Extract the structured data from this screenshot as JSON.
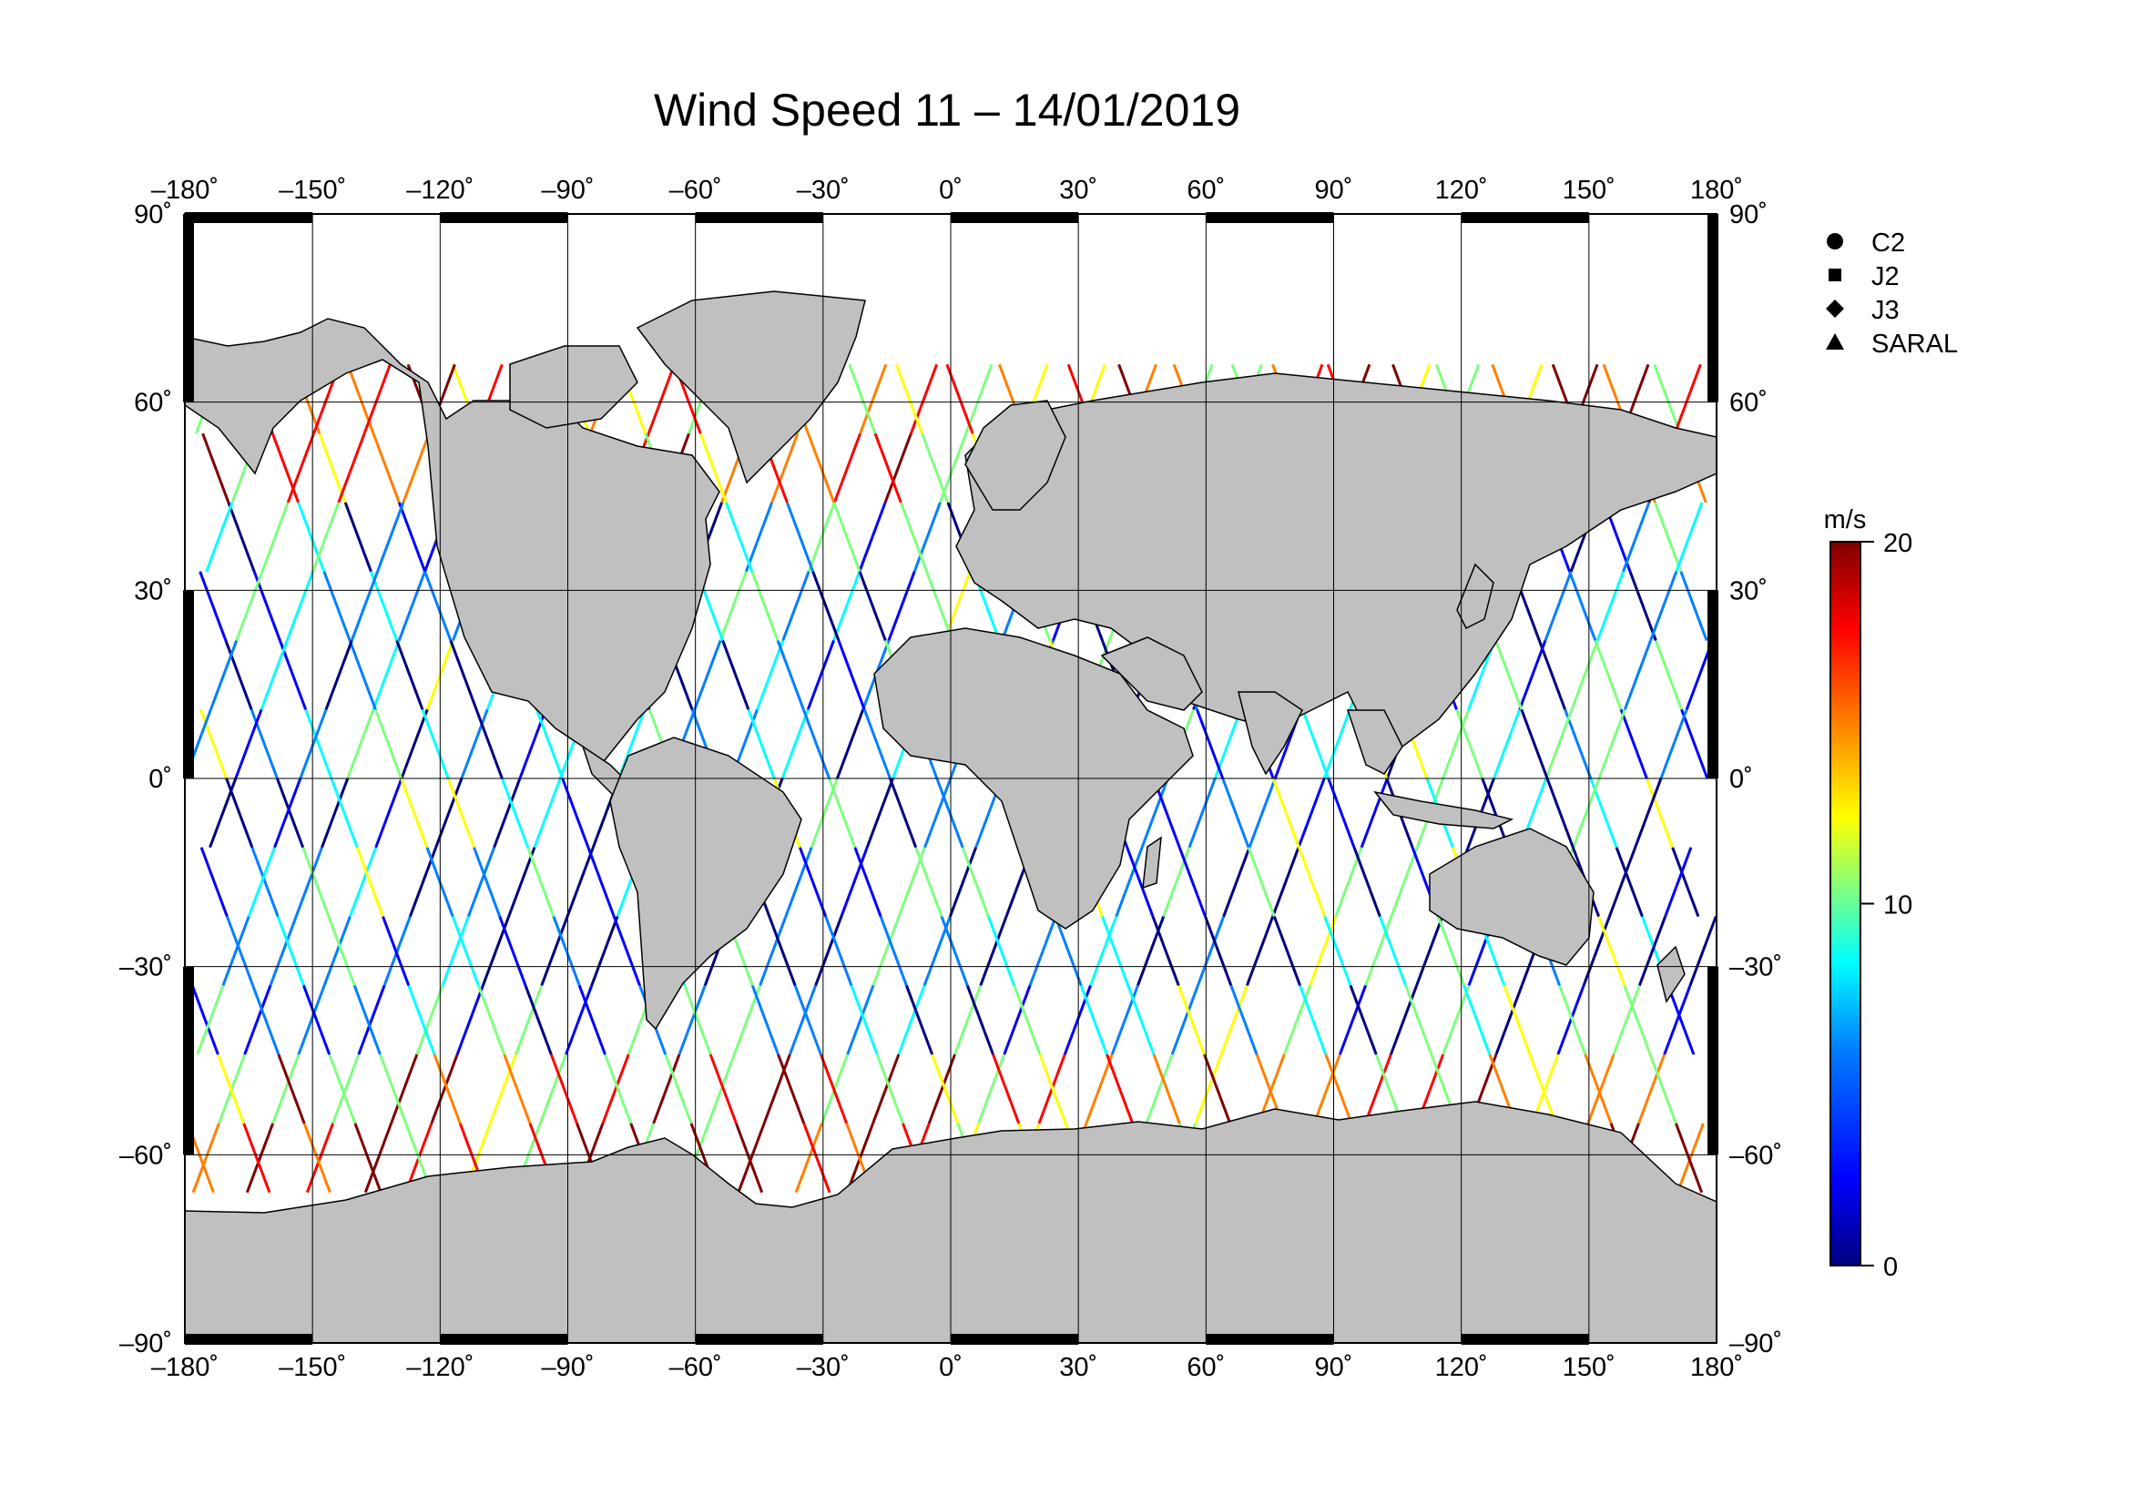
{
  "title": "Wind Speed 11 – 14/01/2019",
  "map": {
    "projection": "equirectangular",
    "lon_range": [
      -180,
      180
    ],
    "lat_range": [
      -90,
      90
    ],
    "lon_ticks": [
      "–180˚",
      "–150˚",
      "–120˚",
      "–90˚",
      "–60˚",
      "–30˚",
      "0˚",
      "30˚",
      "60˚",
      "90˚",
      "120˚",
      "150˚",
      "180˚"
    ],
    "lat_ticks": [
      "90˚",
      "60˚",
      "30˚",
      "0˚",
      "–30˚",
      "–60˚",
      "–90˚"
    ],
    "land_color": "#c0c0c0",
    "ocean_color": "#ffffff",
    "grid": true
  },
  "legend": {
    "items": [
      {
        "label": "C2",
        "symbol": "circle-icon"
      },
      {
        "label": "J2",
        "symbol": "square-icon"
      },
      {
        "label": "J3",
        "symbol": "diamond-icon"
      },
      {
        "label": "SARAL",
        "symbol": "triangle-icon"
      }
    ]
  },
  "colorbar": {
    "unit": "m/s",
    "ticks": [
      "20",
      "10",
      "0"
    ],
    "min": 0,
    "max": 20,
    "colors": [
      "#00007f",
      "#0000ff",
      "#007fff",
      "#00ffff",
      "#7fff7f",
      "#ffff00",
      "#ff7f00",
      "#ff0000",
      "#7f0000"
    ]
  }
}
